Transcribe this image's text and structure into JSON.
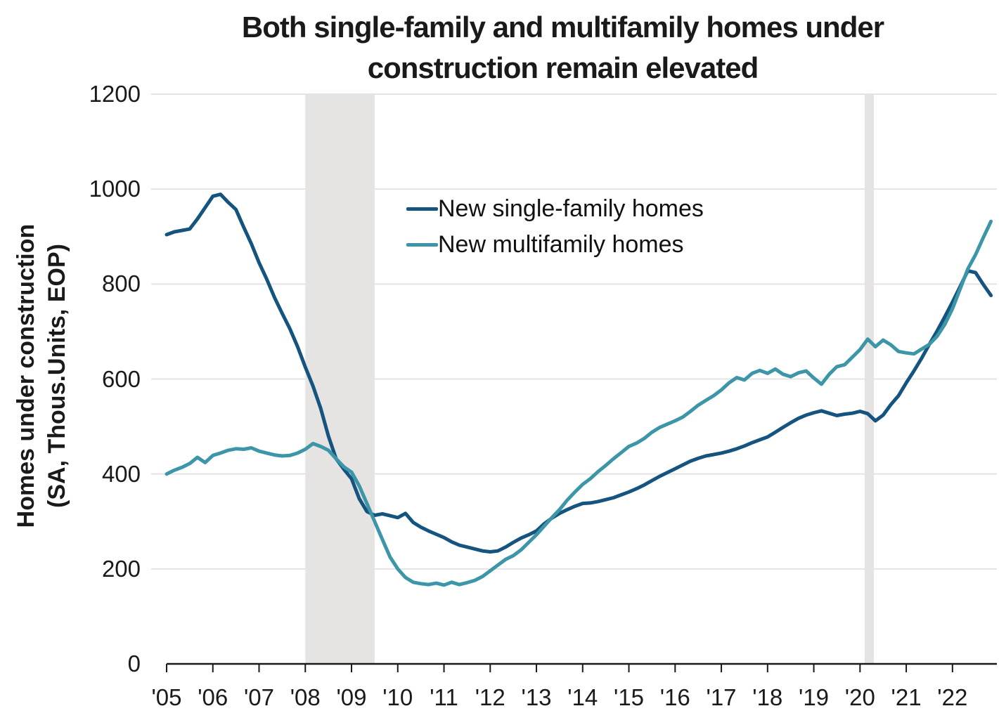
{
  "title": {
    "line1": "Both single-family and multifamily homes under",
    "line2": "construction remain elevated"
  },
  "y_axis": {
    "label_line1": "Homes under construction",
    "label_line2": "(SA, Thous.Units, EOP)"
  },
  "colors": {
    "single_family": "#14547e",
    "multifamily": "#3c96a8",
    "recession_band": "#e6e4e2",
    "gridline": "#e4e4e4",
    "axis": "#1a1a1a",
    "text": "#1a1a1a"
  },
  "chart_data": {
    "type": "line",
    "title": "Both single-family and multifamily homes under construction remain elevated",
    "xlabel": "",
    "ylabel": "Homes under construction (SA, Thous.Units, EOP)",
    "grid": "horizontal",
    "legend_position": "upper-center-inside",
    "ylim": [
      0,
      1200
    ],
    "y_ticks": [
      0,
      200,
      400,
      600,
      800,
      1000,
      1200
    ],
    "x_start": 2005.0,
    "x_end": 2022.9,
    "x_tick_years": [
      2005,
      2006,
      2007,
      2008,
      2009,
      2010,
      2011,
      2012,
      2013,
      2014,
      2015,
      2016,
      2017,
      2018,
      2019,
      2020,
      2021,
      2022
    ],
    "x_tick_labels": [
      "'05",
      "'06",
      "'07",
      "'08",
      "'09",
      "'10",
      "'11",
      "'12",
      "'13",
      "'14",
      "'15",
      "'16",
      "'17",
      "'18",
      "'19",
      "'20",
      "'21",
      "'22"
    ],
    "recession_bands": [
      {
        "start": 2008.0,
        "end": 2009.5
      },
      {
        "start": 2020.1,
        "end": 2020.3
      }
    ],
    "points_per_year": 6,
    "series": [
      {
        "name": "New single-family homes",
        "color": "#14547e",
        "start_year": 2005.0,
        "values": [
          904,
          910,
          913,
          916,
          937,
          961,
          985,
          989,
          972,
          957,
          920,
          885,
          845,
          810,
          772,
          738,
          706,
          668,
          625,
          585,
          538,
          480,
          432,
          410,
          390,
          348,
          321,
          313,
          316,
          312,
          308,
          317,
          298,
          288,
          280,
          273,
          266,
          257,
          250,
          246,
          242,
          238,
          236,
          238,
          246,
          256,
          265,
          272,
          280,
          295,
          307,
          317,
          325,
          332,
          338,
          339,
          342,
          346,
          350,
          356,
          362,
          369,
          377,
          386,
          395,
          403,
          411,
          419,
          427,
          433,
          438,
          441,
          444,
          448,
          453,
          459,
          466,
          472,
          478,
          488,
          498,
          508,
          517,
          524,
          529,
          533,
          528,
          523,
          526,
          528,
          532,
          527,
          512,
          524,
          546,
          565,
          592,
          617,
          644,
          673,
          701,
          731,
          762,
          795,
          828,
          824,
          799,
          776
        ]
      },
      {
        "name": "New multifamily homes",
        "color": "#3c96a8",
        "start_year": 2005.0,
        "values": [
          400,
          408,
          414,
          422,
          435,
          424,
          439,
          444,
          450,
          453,
          452,
          455,
          448,
          444,
          440,
          438,
          439,
          444,
          452,
          464,
          458,
          450,
          432,
          415,
          404,
          375,
          338,
          300,
          262,
          225,
          200,
          182,
          172,
          169,
          167,
          170,
          166,
          172,
          167,
          171,
          176,
          184,
          196,
          208,
          220,
          228,
          240,
          256,
          272,
          290,
          308,
          325,
          345,
          362,
          378,
          390,
          405,
          418,
          432,
          445,
          458,
          465,
          475,
          488,
          498,
          505,
          512,
          520,
          532,
          545,
          555,
          565,
          577,
          592,
          603,
          598,
          612,
          618,
          612,
          621,
          610,
          605,
          613,
          617,
          602,
          589,
          610,
          626,
          630,
          646,
          662,
          684,
          668,
          682,
          672,
          658,
          655,
          653,
          663,
          673,
          690,
          715,
          748,
          790,
          832,
          862,
          898,
          932
        ]
      }
    ]
  }
}
